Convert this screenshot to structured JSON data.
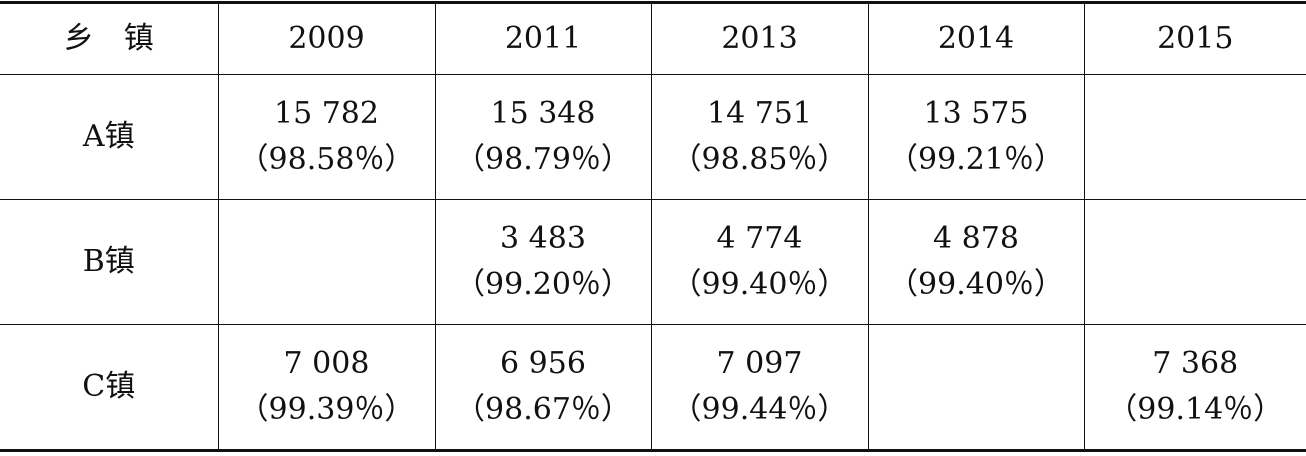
{
  "table": {
    "header": [
      "乡　镇",
      "2009",
      "2011",
      "2013",
      "2014",
      "2015"
    ],
    "rows": [
      {
        "label": "A镇",
        "cells": [
          {
            "count": "15 782",
            "share": "（98.58％）"
          },
          {
            "count": "15 348",
            "share": "（98.79％）"
          },
          {
            "count": "14 751",
            "share": "（98.85％）"
          },
          {
            "count": "13 575",
            "share": "（99.21％）"
          },
          null
        ]
      },
      {
        "label": "B镇",
        "cells": [
          null,
          {
            "count": "3 483",
            "share": "（99.20％）"
          },
          {
            "count": "4 774",
            "share": "（99.40％）"
          },
          {
            "count": "4 878",
            "share": "（99.40％）"
          },
          null
        ]
      },
      {
        "label": "C镇",
        "cells": [
          {
            "count": "7 008",
            "share": "（99.39％）"
          },
          {
            "count": "6 956",
            "share": "（98.67％）"
          },
          {
            "count": "7 097",
            "share": "（99.44％）"
          },
          null,
          {
            "count": "7 368",
            "share": "（99.14％）"
          }
        ]
      }
    ]
  }
}
